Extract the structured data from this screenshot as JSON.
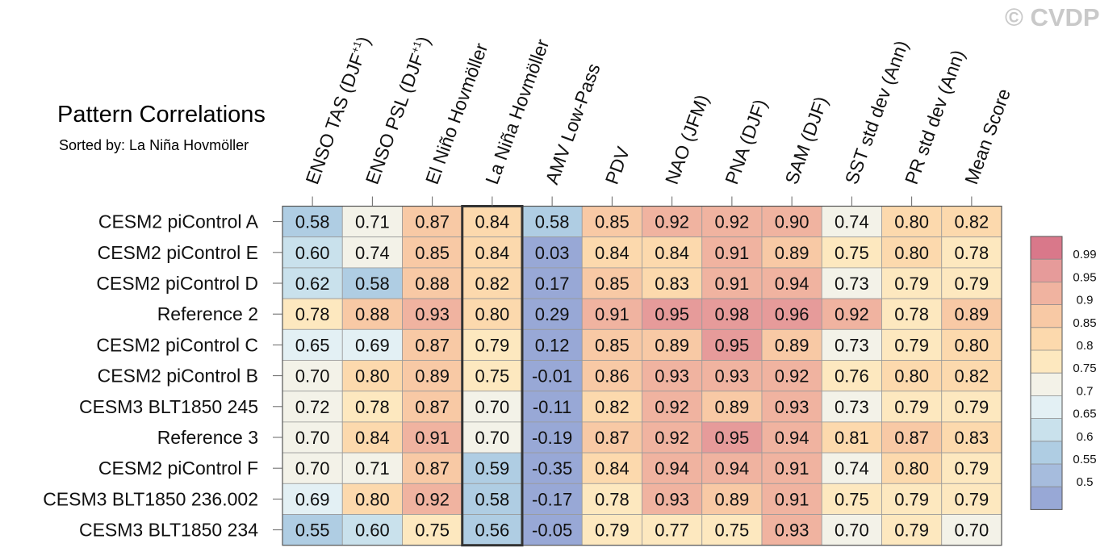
{
  "title": "Pattern Correlations",
  "subtitle": "Sorted by: La Niña Hovmöller",
  "watermark": "© CVDP",
  "chart_data": {
    "type": "heatmap",
    "title": "Pattern Correlations",
    "subtitle": "Sorted by: La Niña Hovmöller",
    "highlighted_column": "La Niña Hovmöller",
    "columns": [
      {
        "label": "ENSO TAS (DJF",
        "sup": "+1",
        "tail": ")"
      },
      {
        "label": "ENSO PSL (DJF",
        "sup": "+1",
        "tail": ")"
      },
      {
        "label": "El Niño Hovmöller",
        "sup": "",
        "tail": ""
      },
      {
        "label": "La Niña Hovmöller",
        "sup": "",
        "tail": ""
      },
      {
        "label": "AMV Low-Pass",
        "sup": "",
        "tail": ""
      },
      {
        "label": "PDV",
        "sup": "",
        "tail": ""
      },
      {
        "label": "NAO (JFM)",
        "sup": "",
        "tail": ""
      },
      {
        "label": "PNA (DJF)",
        "sup": "",
        "tail": ""
      },
      {
        "label": "SAM (DJF)",
        "sup": "",
        "tail": ""
      },
      {
        "label": "SST std dev (Ann)",
        "sup": "",
        "tail": ""
      },
      {
        "label": "PR std dev (Ann)",
        "sup": "",
        "tail": ""
      },
      {
        "label": "Mean Score",
        "sup": "",
        "tail": ""
      }
    ],
    "rows": [
      "CESM2 piControl A",
      "CESM2 piControl E",
      "CESM2 piControl D",
      "Reference 2",
      "CESM2 piControl C",
      "CESM2 piControl B",
      "CESM3 BLT1850 245",
      "Reference 3",
      "CESM2 piControl F",
      "CESM3 BLT1850 236.002",
      "CESM3 BLT1850 234"
    ],
    "values": [
      [
        "0.58",
        "0.71",
        "0.87",
        "0.84",
        "0.58",
        "0.85",
        "0.92",
        "0.92",
        "0.90",
        "0.74",
        "0.80",
        "0.82"
      ],
      [
        "0.60",
        "0.74",
        "0.85",
        "0.84",
        "0.03",
        "0.84",
        "0.84",
        "0.91",
        "0.89",
        "0.75",
        "0.80",
        "0.78"
      ],
      [
        "0.62",
        "0.58",
        "0.88",
        "0.82",
        "0.17",
        "0.85",
        "0.83",
        "0.91",
        "0.94",
        "0.73",
        "0.79",
        "0.79"
      ],
      [
        "0.78",
        "0.88",
        "0.93",
        "0.80",
        "0.29",
        "0.91",
        "0.95",
        "0.98",
        "0.96",
        "0.92",
        "0.78",
        "0.89"
      ],
      [
        "0.65",
        "0.69",
        "0.87",
        "0.79",
        "0.12",
        "0.85",
        "0.89",
        "0.95",
        "0.89",
        "0.73",
        "0.79",
        "0.80"
      ],
      [
        "0.70",
        "0.80",
        "0.89",
        "0.75",
        "-0.01",
        "0.86",
        "0.93",
        "0.93",
        "0.92",
        "0.76",
        "0.80",
        "0.82"
      ],
      [
        "0.72",
        "0.78",
        "0.87",
        "0.70",
        "-0.11",
        "0.82",
        "0.92",
        "0.89",
        "0.93",
        "0.73",
        "0.79",
        "0.79"
      ],
      [
        "0.70",
        "0.84",
        "0.91",
        "0.70",
        "-0.19",
        "0.87",
        "0.92",
        "0.95",
        "0.94",
        "0.81",
        "0.87",
        "0.83"
      ],
      [
        "0.70",
        "0.71",
        "0.87",
        "0.59",
        "-0.35",
        "0.84",
        "0.94",
        "0.94",
        "0.91",
        "0.74",
        "0.80",
        "0.79"
      ],
      [
        "0.69",
        "0.80",
        "0.92",
        "0.58",
        "-0.17",
        "0.78",
        "0.93",
        "0.89",
        "0.91",
        "0.75",
        "0.79",
        "0.79"
      ],
      [
        "0.55",
        "0.60",
        "0.75",
        "0.56",
        "-0.05",
        "0.79",
        "0.77",
        "0.75",
        "0.93",
        "0.70",
        "0.79",
        "0.70"
      ]
    ],
    "colorbar": {
      "labels": [
        "0.99",
        "0.95",
        "0.9",
        "0.85",
        "0.8",
        "0.75",
        "0.7",
        "0.65",
        "0.6",
        "0.55",
        "0.5"
      ],
      "thresholds": [
        0.99,
        0.95,
        0.9,
        0.85,
        0.8,
        0.75,
        0.7,
        0.65,
        0.6,
        0.55,
        0.5
      ],
      "colors": [
        "#d9788a",
        "#e69b9a",
        "#f0b3a0",
        "#f8c9a5",
        "#fcd9ad",
        "#fde8bf",
        "#f3f2e8",
        "#e3f0f4",
        "#c9e1ec",
        "#afcde3",
        "#a6bcdd",
        "#98a8d6"
      ]
    }
  }
}
